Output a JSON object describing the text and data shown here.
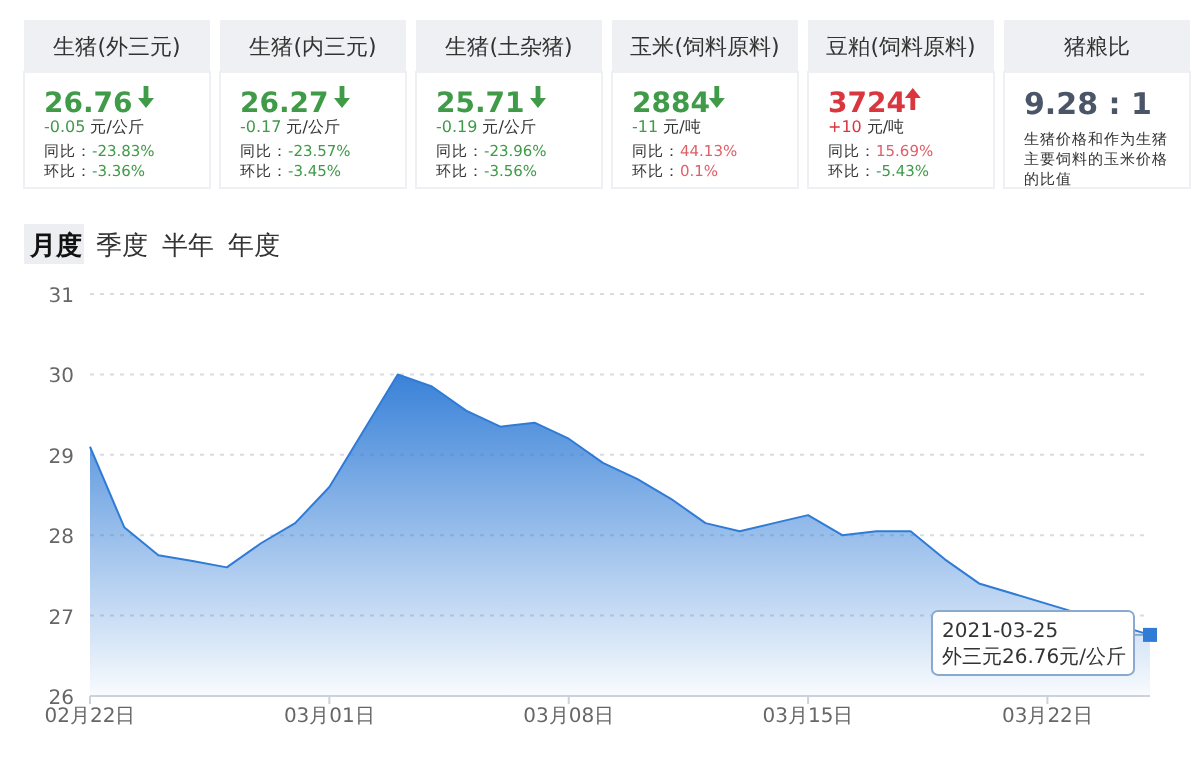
{
  "chart_data": [
    {
      "type": "other",
      "categories": [
        "生猪(外三元)",
        "生猪(内三元)",
        "生猪(土杂猪)",
        "玉米(饲料原料)",
        "豆粕(饲料原料)",
        "猪粮比"
      ],
      "annotations": [
        "26.76",
        "-0.05 元/公斤",
        "同比：-23.83%",
        "环比：-3.36%",
        "26.27",
        "-0.17 元/公斤",
        "同比：-23.57%",
        "环比：-3.45%",
        "25.71",
        "-0.19 元/公斤",
        "同比：-23.96%",
        "环比：-3.56%",
        "2884",
        "-11 元/吨",
        "同比：44.13%",
        "环比：0.1%",
        "3724",
        "+10 元/吨",
        "同比：15.69%",
        "环比：-5.43%",
        "9.28 : 1",
        "生猪价格和作为生猪主要饲料的玉米价格的比值"
      ]
    },
    {
      "type": "area",
      "x": [
        "2021-02-22",
        "2021-02-23",
        "2021-02-24",
        "2021-02-25",
        "2021-02-26",
        "2021-02-27",
        "2021-02-28",
        "2021-03-01",
        "2021-03-02",
        "2021-03-03",
        "2021-03-04",
        "2021-03-05",
        "2021-03-06",
        "2021-03-07",
        "2021-03-08",
        "2021-03-09",
        "2021-03-10",
        "2021-03-11",
        "2021-03-12",
        "2021-03-13",
        "2021-03-14",
        "2021-03-15",
        "2021-03-16",
        "2021-03-17",
        "2021-03-18",
        "2021-03-19",
        "2021-03-20",
        "2021-03-25"
      ],
      "series": [
        {
          "color": "#2f7bd6",
          "values": [
            29.1,
            28.1,
            27.75,
            27.68,
            27.6,
            27.9,
            28.15,
            28.6,
            29.3,
            30.0,
            29.85,
            29.55,
            29.35,
            29.4,
            29.2,
            28.9,
            28.7,
            28.45,
            28.15,
            28.05,
            28.15,
            28.25,
            28.0,
            28.05,
            28.05,
            27.7,
            27.4,
            26.76
          ]
        }
      ],
      "xlim": [
        "2021-02-22",
        "2021-03-25"
      ],
      "xticks": [
        {
          "value": "2021-02-22",
          "label": "02月22日"
        },
        {
          "value": "2021-03-01",
          "label": "03月01日"
        },
        {
          "value": "2021-03-08",
          "label": "03月08日"
        },
        {
          "value": "2021-03-15",
          "label": "03月15日"
        },
        {
          "value": "2021-03-22",
          "label": "03月22日"
        }
      ],
      "ylim": [
        26,
        31
      ],
      "yticks": [
        26,
        27,
        28,
        29,
        30,
        31
      ],
      "grid": "y",
      "annotations": [
        "月度",
        "季度",
        "半年",
        "年度",
        {
          "text": "2021-03-25\n外三元26.76元/公斤",
          "x": "2021-03-25",
          "y": 26.76
        }
      ]
    }
  ]
}
